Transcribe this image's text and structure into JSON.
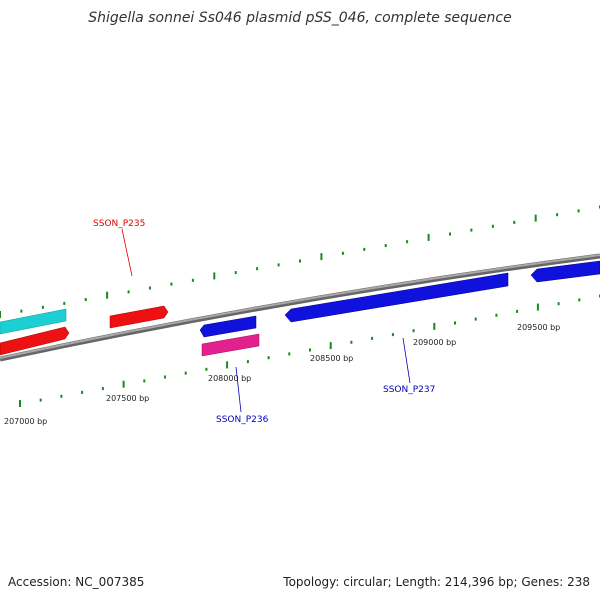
{
  "title": "Shigella sonnei Ss046 plasmid pSS_046, complete sequence",
  "footer": {
    "accession": "Accession: NC_007385",
    "summary": "Topology: circular; Length: 214,396 bp; Genes: 238"
  },
  "colors": {
    "backbone": "#888888",
    "tick": "#1a8a1a",
    "forward_gene": "#ee1111",
    "reverse_gene": "#1111dd",
    "cyan_gene": "#1ccfd2",
    "pink_gene": "#e2208e",
    "label_red": "#dd0000",
    "label_blue": "#0000bb"
  },
  "scale_labels": [
    "207000 bp",
    "207500 bp",
    "208000 bp",
    "208500 bp",
    "209000 bp",
    "209500 bp"
  ],
  "gene_labels": [
    {
      "text": "SSON_P235",
      "color": "red"
    },
    {
      "text": "SSON_P236",
      "color": "blue"
    },
    {
      "text": "SSON_P237",
      "color": "blue"
    }
  ]
}
